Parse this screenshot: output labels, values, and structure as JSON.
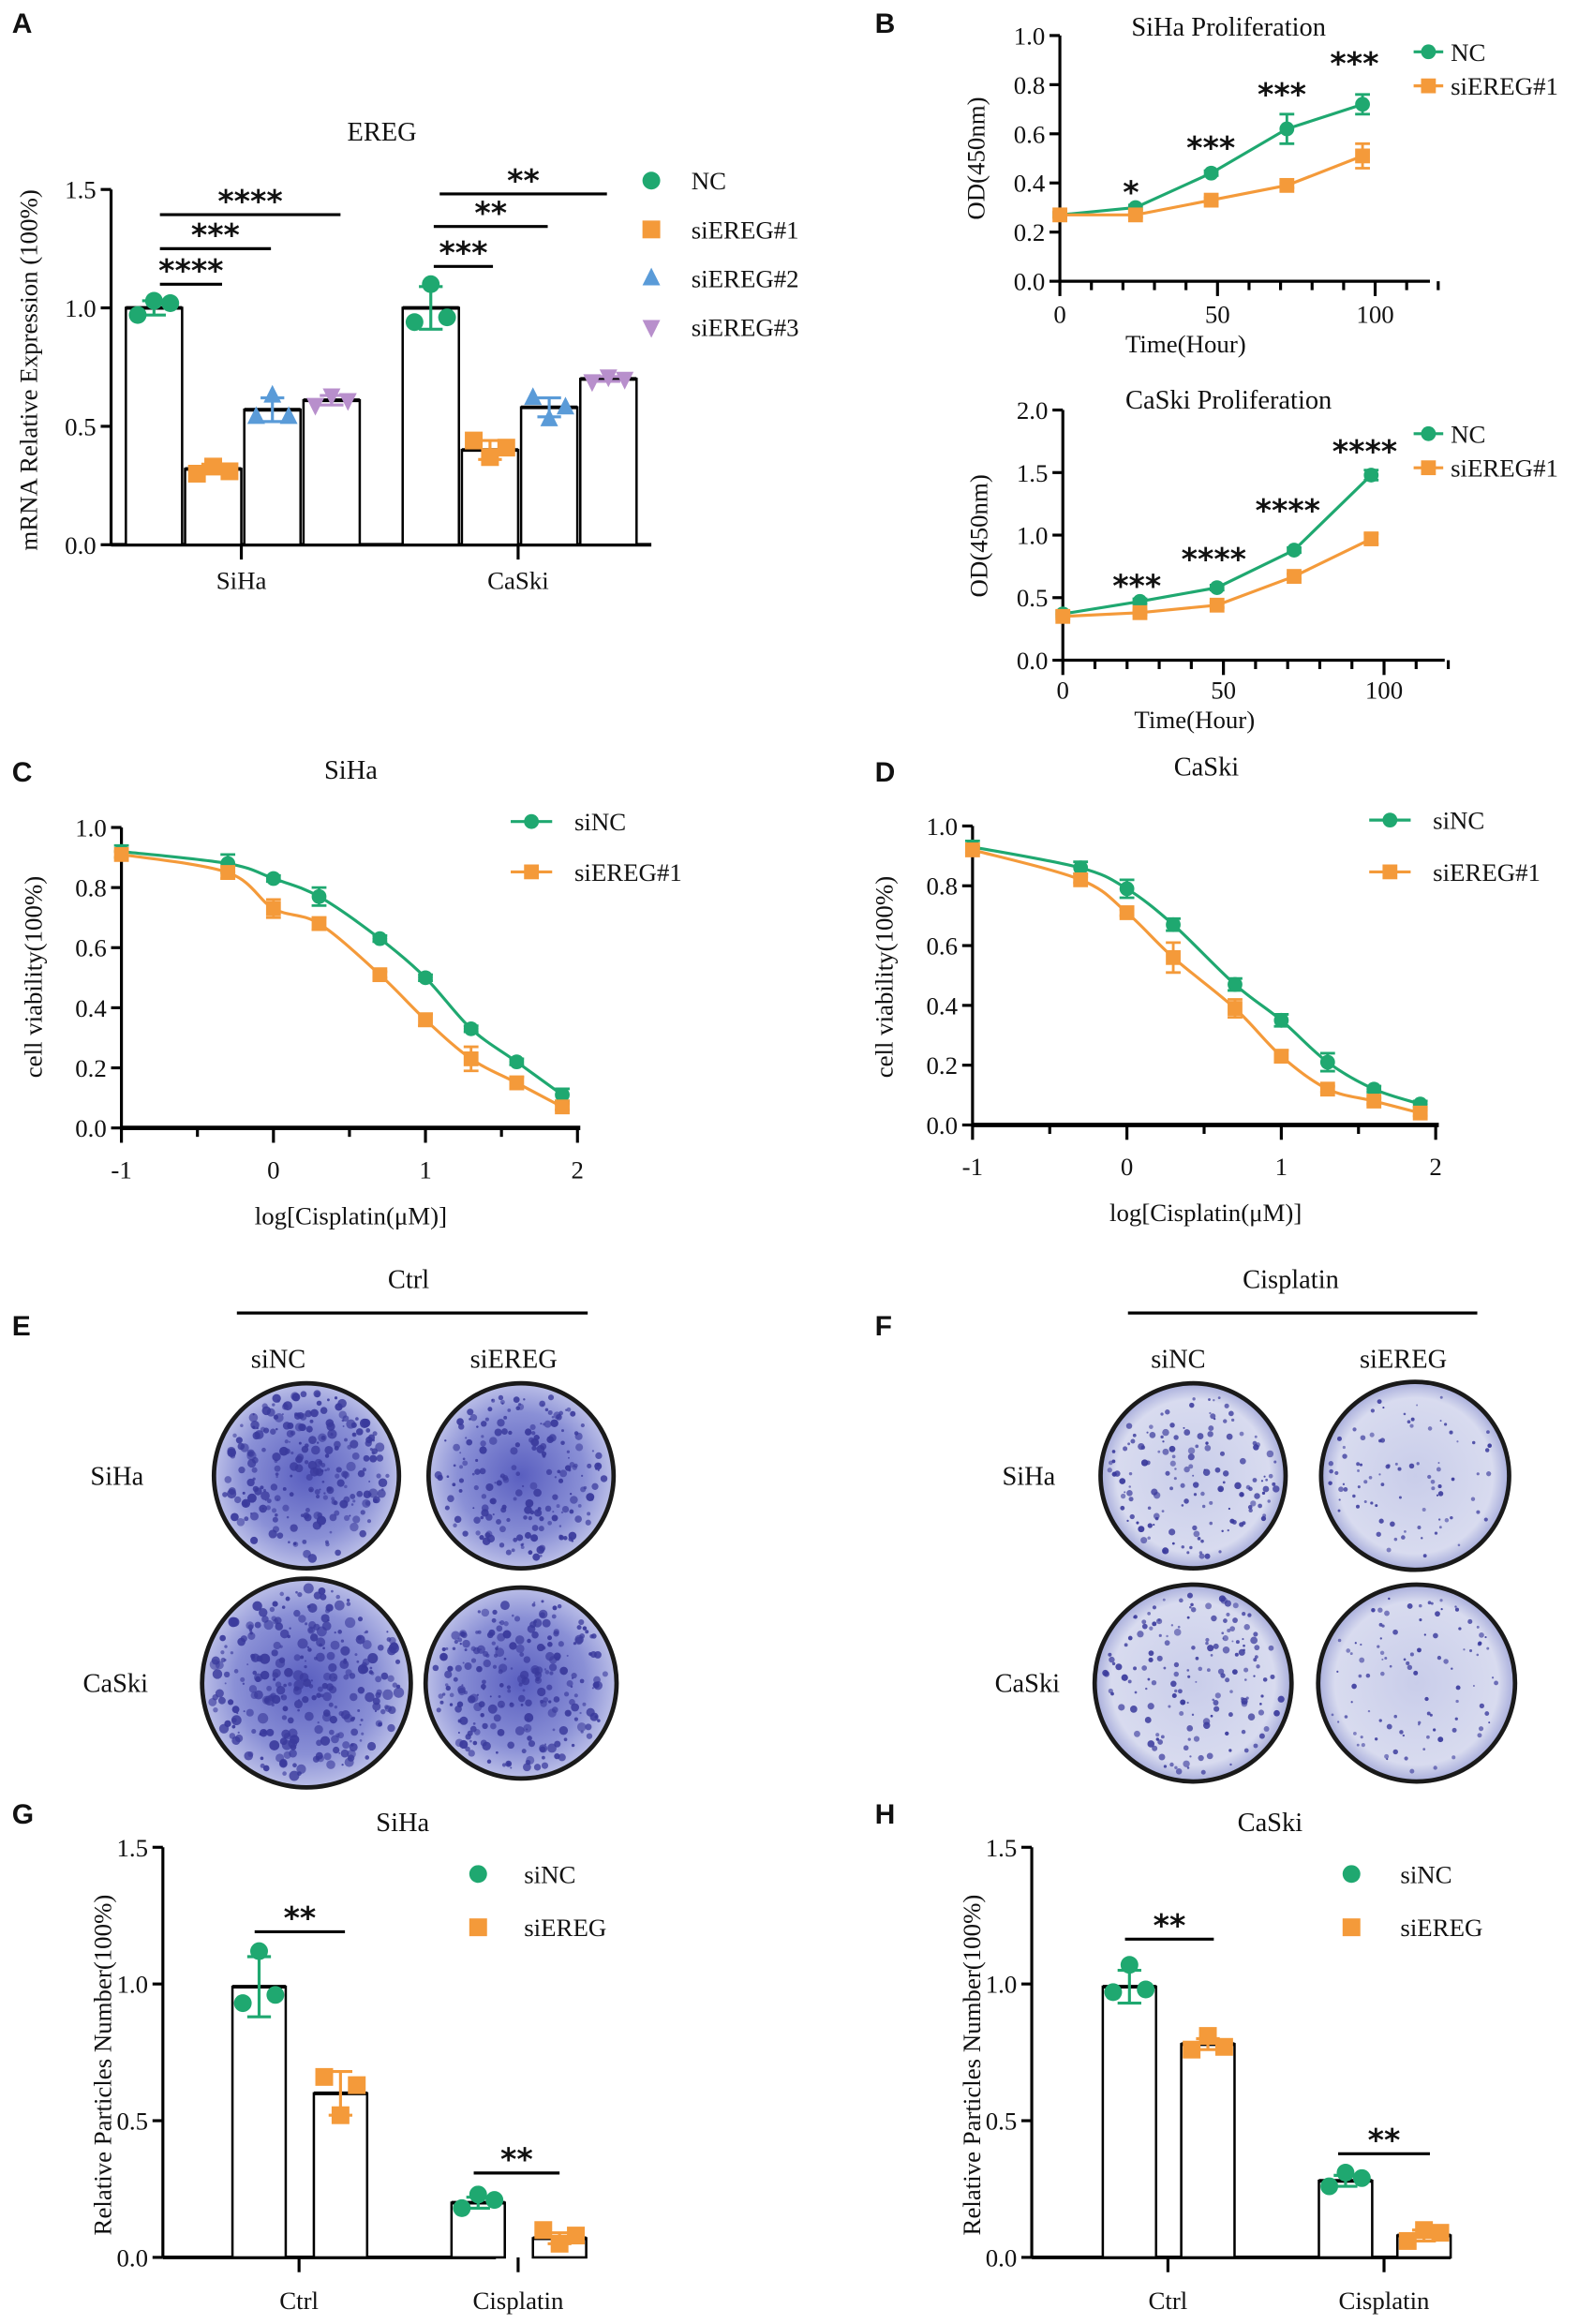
{
  "panel_labels": [
    "A",
    "B",
    "C",
    "D",
    "E",
    "F",
    "G",
    "H"
  ],
  "colors": {
    "green": "#1fa870",
    "orange": "#f49a3a",
    "blue": "#5a9bd8",
    "purple": "#b88fcc",
    "stain": "#4a4fb0"
  },
  "chart_data": [
    {
      "id": "A",
      "type": "bar",
      "title": "EREG",
      "xlabel": "",
      "ylabel": "mRNA Relative Expression (100%)",
      "ylim": [
        0,
        1.5
      ],
      "yticks": [
        "0.0",
        "0.5",
        "1.0",
        "1.5"
      ],
      "categories": [
        "SiHa",
        "CaSki"
      ],
      "legend_position": "right",
      "series": [
        {
          "name": "NC",
          "marker": "circle",
          "color": "#1fa870",
          "values": [
            1.0,
            1.0
          ],
          "sd": [
            0.03,
            0.09
          ],
          "points": [
            [
              0.97,
              1.03,
              1.02
            ],
            [
              0.94,
              1.1,
              0.96
            ]
          ]
        },
        {
          "name": "siEREG#1",
          "marker": "square",
          "color": "#f49a3a",
          "values": [
            0.32,
            0.4
          ],
          "sd": [
            0.02,
            0.04
          ],
          "points": [
            [
              0.3,
              0.33,
              0.31
            ],
            [
              0.44,
              0.37,
              0.41
            ]
          ]
        },
        {
          "name": "siEREG#2",
          "marker": "triangle-up",
          "color": "#5a9bd8",
          "values": [
            0.57,
            0.58
          ],
          "sd": [
            0.05,
            0.04
          ],
          "points": [
            [
              0.54,
              0.63,
              0.54
            ],
            [
              0.62,
              0.53,
              0.58
            ]
          ]
        },
        {
          "name": "siEREG#3",
          "marker": "triangle-down",
          "color": "#b88fcc",
          "values": [
            0.61,
            0.7
          ],
          "sd": [
            0.02,
            0.01
          ],
          "points": [
            [
              0.59,
              0.63,
              0.61
            ],
            [
              0.69,
              0.71,
              0.7
            ]
          ]
        }
      ],
      "significance": [
        {
          "category": "SiHa",
          "compare": [
            "NC",
            "siEREG#1"
          ],
          "label": "****"
        },
        {
          "category": "SiHa",
          "compare": [
            "NC",
            "siEREG#2"
          ],
          "label": "***"
        },
        {
          "category": "SiHa",
          "compare": [
            "NC",
            "siEREG#3"
          ],
          "label": "****"
        },
        {
          "category": "CaSki",
          "compare": [
            "NC",
            "siEREG#1"
          ],
          "label": "***"
        },
        {
          "category": "CaSki",
          "compare": [
            "NC",
            "siEREG#2"
          ],
          "label": "**"
        },
        {
          "category": "CaSki",
          "compare": [
            "NC",
            "siEREG#3"
          ],
          "label": "**"
        }
      ]
    },
    {
      "id": "B1",
      "type": "line",
      "title": "SiHa Proliferation",
      "xlabel": "Time(Hour)",
      "ylabel": "OD(450nm)",
      "xlim": [
        0,
        120
      ],
      "ylim": [
        0,
        1.0
      ],
      "xticks": [
        "0",
        "50",
        "100"
      ],
      "yticks": [
        "0.0",
        "0.2",
        "0.4",
        "0.6",
        "0.8",
        "1.0"
      ],
      "x": [
        0,
        24,
        48,
        72,
        96
      ],
      "legend_position": "top-right",
      "series": [
        {
          "name": "NC",
          "marker": "circle",
          "color": "#1fa870",
          "values": [
            0.27,
            0.3,
            0.44,
            0.62,
            0.72
          ],
          "err": [
            0.01,
            0.01,
            0.01,
            0.06,
            0.04
          ]
        },
        {
          "name": "siEREG#1",
          "marker": "square",
          "color": "#f49a3a",
          "values": [
            0.27,
            0.27,
            0.33,
            0.39,
            0.51
          ],
          "err": [
            0.01,
            0.01,
            0.01,
            0.01,
            0.05
          ]
        }
      ],
      "annotations": [
        {
          "x": 24,
          "label": "*"
        },
        {
          "x": 48,
          "label": "***"
        },
        {
          "x": 72,
          "label": "***"
        },
        {
          "x": 96,
          "label": "***"
        }
      ]
    },
    {
      "id": "B2",
      "type": "line",
      "title": "CaSki Proliferation",
      "xlabel": "Time(Hour)",
      "ylabel": "OD(450nm)",
      "xlim": [
        0,
        120
      ],
      "ylim": [
        0,
        2.0
      ],
      "xticks": [
        "0",
        "50",
        "100"
      ],
      "yticks": [
        "0.0",
        "0.5",
        "1.0",
        "1.5",
        "2.0"
      ],
      "x": [
        0,
        24,
        48,
        72,
        96
      ],
      "legend_position": "top-right",
      "series": [
        {
          "name": "NC",
          "marker": "circle",
          "color": "#1fa870",
          "values": [
            0.37,
            0.47,
            0.58,
            0.88,
            1.48
          ],
          "err": [
            0.02,
            0.02,
            0.02,
            0.02,
            0.04
          ]
        },
        {
          "name": "siEREG#1",
          "marker": "square",
          "color": "#f49a3a",
          "values": [
            0.35,
            0.38,
            0.44,
            0.67,
            0.97
          ],
          "err": [
            0.02,
            0.02,
            0.02,
            0.02,
            0.04
          ]
        }
      ],
      "annotations": [
        {
          "x": 24,
          "label": "***"
        },
        {
          "x": 48,
          "label": "****"
        },
        {
          "x": 72,
          "label": "****"
        },
        {
          "x": 96,
          "label": "****"
        }
      ]
    },
    {
      "id": "C",
      "type": "line",
      "title": "SiHa",
      "xlabel": "log[Cisplatin(μM)]",
      "ylabel": "cell viability(100%)",
      "xlim": [
        -1,
        2
      ],
      "ylim": [
        0,
        1.0
      ],
      "xticks": [
        "-1",
        "0",
        "1",
        "2"
      ],
      "yticks": [
        "0.0",
        "0.2",
        "0.4",
        "0.6",
        "0.8",
        "1.0"
      ],
      "x": [
        -1,
        -0.3,
        0,
        0.3,
        0.7,
        1.0,
        1.3,
        1.6,
        1.9
      ],
      "legend_position": "top-right",
      "series": [
        {
          "name": "siNC",
          "marker": "circle",
          "color": "#1fa870",
          "values": [
            0.92,
            0.88,
            0.83,
            0.77,
            0.63,
            0.5,
            0.33,
            0.22,
            0.11
          ],
          "err": [
            0.02,
            0.03,
            0.01,
            0.03,
            0.01,
            0.01,
            0.01,
            0.01,
            0.02
          ]
        },
        {
          "name": "siEREG#1",
          "marker": "square",
          "color": "#f49a3a",
          "values": [
            0.91,
            0.85,
            0.73,
            0.68,
            0.51,
            0.36,
            0.23,
            0.15,
            0.07
          ],
          "err": [
            0.01,
            0.02,
            0.03,
            0.02,
            0.01,
            0.02,
            0.04,
            0.02,
            0.01
          ]
        }
      ],
      "annotations": []
    },
    {
      "id": "D",
      "type": "line",
      "title": "CaSki",
      "xlabel": "log[Cisplatin(μM)]",
      "ylabel": "cell viability(100%)",
      "xlim": [
        -1,
        2
      ],
      "ylim": [
        0,
        1.0
      ],
      "xticks": [
        "-1",
        "0",
        "1",
        "2"
      ],
      "yticks": [
        "0.0",
        "0.2",
        "0.4",
        "0.6",
        "0.8",
        "1.0"
      ],
      "x": [
        -1,
        -0.3,
        0,
        0.3,
        0.7,
        1.0,
        1.3,
        1.6,
        1.9
      ],
      "legend_position": "top-right",
      "series": [
        {
          "name": "siNC",
          "marker": "circle",
          "color": "#1fa870",
          "values": [
            0.93,
            0.86,
            0.79,
            0.67,
            0.47,
            0.35,
            0.21,
            0.12,
            0.07
          ],
          "err": [
            0.02,
            0.02,
            0.03,
            0.02,
            0.02,
            0.02,
            0.03,
            0.01,
            0.01
          ]
        },
        {
          "name": "siEREG#1",
          "marker": "square",
          "color": "#f49a3a",
          "values": [
            0.92,
            0.82,
            0.71,
            0.56,
            0.39,
            0.23,
            0.12,
            0.08,
            0.04
          ],
          "err": [
            0.01,
            0.01,
            0.01,
            0.05,
            0.03,
            0.02,
            0.01,
            0.01,
            0.01
          ]
        }
      ],
      "annotations": []
    },
    {
      "id": "G",
      "type": "bar",
      "title": "SiHa",
      "xlabel": "",
      "ylabel": "Relative Particles Number(100%)",
      "ylim": [
        0,
        1.5
      ],
      "yticks": [
        "0.0",
        "0.5",
        "1.0",
        "1.5"
      ],
      "categories": [
        "Ctrl",
        "Cisplatin"
      ],
      "legend_position": "top-right",
      "series": [
        {
          "name": "siNC",
          "marker": "circle",
          "color": "#1fa870",
          "values": [
            0.99,
            0.2
          ],
          "sd": [
            0.11,
            0.02
          ],
          "points": [
            [
              0.93,
              1.12,
              0.96
            ],
            [
              0.18,
              0.23,
              0.21
            ]
          ]
        },
        {
          "name": "siEREG",
          "marker": "square",
          "color": "#f49a3a",
          "values": [
            0.6,
            0.07
          ],
          "sd": [
            0.08,
            0.02
          ],
          "points": [
            [
              0.66,
              0.52,
              0.63
            ],
            [
              0.1,
              0.05,
              0.08
            ]
          ]
        }
      ],
      "significance": [
        {
          "category": "Ctrl",
          "compare": [
            "siNC",
            "siEREG"
          ],
          "label": "**"
        },
        {
          "category": "Cisplatin",
          "compare": [
            "siNC",
            "siEREG"
          ],
          "label": "**"
        }
      ]
    },
    {
      "id": "H",
      "type": "bar",
      "title": "CaSki",
      "xlabel": "",
      "ylabel": "Relative Particles Number(100%)",
      "ylim": [
        0,
        1.5
      ],
      "yticks": [
        "0.0",
        "0.5",
        "1.0",
        "1.5"
      ],
      "categories": [
        "Ctrl",
        "Cisplatin"
      ],
      "legend_position": "top-right",
      "series": [
        {
          "name": "siNC",
          "marker": "circle",
          "color": "#1fa870",
          "values": [
            0.99,
            0.28
          ],
          "sd": [
            0.06,
            0.02
          ],
          "points": [
            [
              0.97,
              1.07,
              0.98
            ],
            [
              0.26,
              0.31,
              0.29
            ]
          ]
        },
        {
          "name": "siEREG",
          "marker": "square",
          "color": "#f49a3a",
          "values": [
            0.78,
            0.08
          ],
          "sd": [
            0.02,
            0.02
          ],
          "points": [
            [
              0.76,
              0.81,
              0.77
            ],
            [
              0.06,
              0.1,
              0.09
            ]
          ]
        }
      ],
      "significance": [
        {
          "category": "Ctrl",
          "compare": [
            "siNC",
            "siEREG"
          ],
          "label": "**"
        },
        {
          "category": "Cisplatin",
          "compare": [
            "siNC",
            "siEREG"
          ],
          "label": "**"
        }
      ]
    }
  ],
  "colony_panels": [
    {
      "id": "E",
      "condition": "Ctrl",
      "columns": [
        "siNC",
        "siEREG"
      ],
      "rows": [
        "SiHa",
        "CaSki"
      ]
    },
    {
      "id": "F",
      "condition": "Cisplatin",
      "columns": [
        "siNC",
        "siEREG"
      ],
      "rows": [
        "SiHa",
        "CaSki"
      ]
    }
  ]
}
